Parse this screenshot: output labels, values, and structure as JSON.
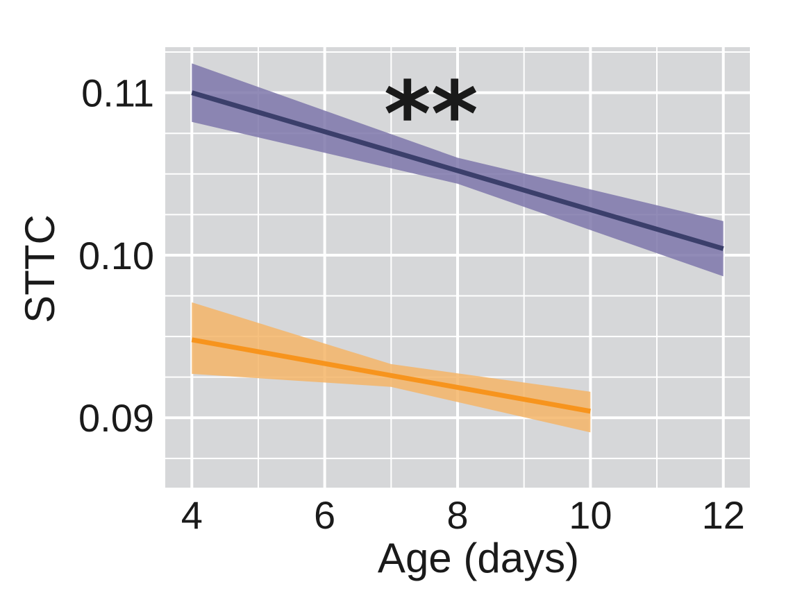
{
  "chart_data": {
    "type": "line",
    "xlabel": "Age (days)",
    "ylabel": "STTC",
    "xlim": [
      3.6,
      12.4
    ],
    "ylim": [
      0.0857,
      0.1128
    ],
    "x_ticks": [
      4,
      6,
      8,
      10,
      12
    ],
    "y_ticks": [
      0.09,
      0.1,
      0.11
    ],
    "x_tick_labels": [
      "4",
      "6",
      "8",
      "10",
      "12"
    ],
    "y_tick_labels": [
      "0.09",
      "0.10",
      "0.11"
    ],
    "grid": true,
    "background": "#d6d7d9",
    "annotation": "**",
    "annotation_position": [
      7.6,
      0.1105
    ],
    "series": [
      {
        "color": "#3b3f6b",
        "band_color": "#7e77aa",
        "x": [
          4,
          12
        ],
        "y": [
          0.11,
          0.1004
        ],
        "ci_lower": [
          0.1082,
          0.0987
        ],
        "ci_upper": [
          0.1118,
          0.1021
        ],
        "ci_mid_x": 8,
        "ci_mid_y": [
          0.1044,
          0.106
        ]
      },
      {
        "color": "#f7941d",
        "band_color": "#f5b567",
        "x": [
          4,
          10
        ],
        "y": [
          0.0948,
          0.0904
        ],
        "ci_lower": [
          0.0927,
          0.0891
        ],
        "ci_upper": [
          0.0971,
          0.0916
        ],
        "ci_mid_x": 7,
        "ci_mid_y": [
          0.0919,
          0.0933
        ]
      }
    ]
  }
}
